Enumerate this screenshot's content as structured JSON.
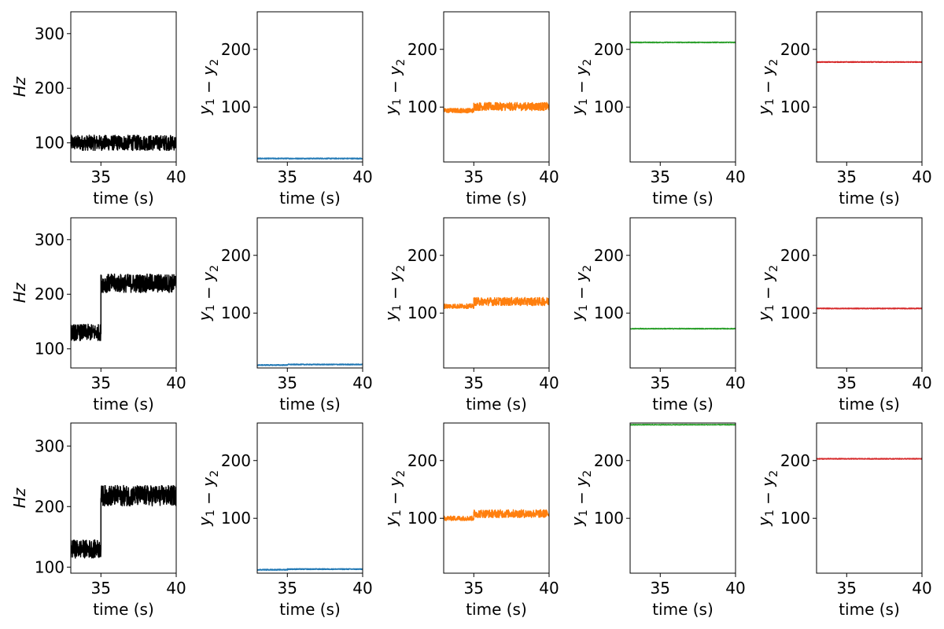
{
  "figure": {
    "rows": 3,
    "cols": 5
  },
  "chart_data": [
    {
      "type": "line",
      "row": 0,
      "col": 0,
      "xlabel": "time (s)",
      "ylabel": "Hz",
      "ylabel_italic": true,
      "xlim": [
        33,
        40
      ],
      "ylim": [
        65,
        340
      ],
      "xticks": [
        35,
        40
      ],
      "yticks": [
        100,
        200,
        300
      ],
      "color": "#000000",
      "segments": [
        {
          "t0": 33,
          "t1": 40,
          "level": 100,
          "amplitude": 14
        }
      ]
    },
    {
      "type": "line",
      "row": 0,
      "col": 1,
      "xlabel": "time (s)",
      "ylabel": "y1-y2",
      "xlim": [
        33,
        40
      ],
      "ylim": [
        5,
        265
      ],
      "xticks": [
        35,
        40
      ],
      "yticks": [
        100,
        200
      ],
      "color": "#1f77b4",
      "segments": [
        {
          "t0": 33,
          "t1": 40,
          "level": 11,
          "amplitude": 0.8
        }
      ]
    },
    {
      "type": "line",
      "row": 0,
      "col": 2,
      "xlabel": "time (s)",
      "ylabel": "y1-y2",
      "xlim": [
        33,
        40
      ],
      "ylim": [
        5,
        265
      ],
      "xticks": [
        35,
        40
      ],
      "yticks": [
        100,
        200
      ],
      "color": "#ff7f0e",
      "segments": [
        {
          "t0": 33,
          "t1": 35,
          "level": 94,
          "amplitude": 4
        },
        {
          "t0": 35,
          "t1": 40,
          "level": 101,
          "amplitude": 7
        }
      ]
    },
    {
      "type": "line",
      "row": 0,
      "col": 3,
      "xlabel": "time (s)",
      "ylabel": "y1-y2",
      "xlim": [
        33,
        40
      ],
      "ylim": [
        5,
        265
      ],
      "xticks": [
        35,
        40
      ],
      "yticks": [
        100,
        200
      ],
      "color": "#2ca02c",
      "segments": [
        {
          "t0": 33,
          "t1": 40,
          "level": 212,
          "amplitude": 0.7
        }
      ]
    },
    {
      "type": "line",
      "row": 0,
      "col": 4,
      "xlabel": "time (s)",
      "ylabel": "y1-y2",
      "xlim": [
        33,
        40
      ],
      "ylim": [
        5,
        265
      ],
      "xticks": [
        35,
        40
      ],
      "yticks": [
        100,
        200
      ],
      "color": "#d62728",
      "segments": [
        {
          "t0": 33,
          "t1": 40,
          "level": 178,
          "amplitude": 0.7
        }
      ]
    },
    {
      "type": "line",
      "row": 1,
      "col": 0,
      "xlabel": "time (s)",
      "ylabel": "Hz",
      "ylabel_italic": true,
      "xlim": [
        33,
        40
      ],
      "ylim": [
        65,
        340
      ],
      "xticks": [
        35,
        40
      ],
      "yticks": [
        100,
        200,
        300
      ],
      "color": "#000000",
      "segments": [
        {
          "t0": 33,
          "t1": 35,
          "level": 130,
          "amplitude": 15
        },
        {
          "t0": 35,
          "t1": 40,
          "level": 220,
          "amplitude": 17
        }
      ]
    },
    {
      "type": "line",
      "row": 1,
      "col": 1,
      "xlabel": "time (s)",
      "ylabel": "y1-y2",
      "xlim": [
        33,
        40
      ],
      "ylim": [
        5,
        265
      ],
      "xticks": [
        35,
        40
      ],
      "yticks": [
        100,
        200
      ],
      "color": "#1f77b4",
      "segments": [
        {
          "t0": 33,
          "t1": 35,
          "level": 10,
          "amplitude": 0.8
        },
        {
          "t0": 35,
          "t1": 40,
          "level": 11,
          "amplitude": 0.8
        }
      ]
    },
    {
      "type": "line",
      "row": 1,
      "col": 2,
      "xlabel": "time (s)",
      "ylabel": "y1-y2",
      "xlim": [
        33,
        40
      ],
      "ylim": [
        5,
        265
      ],
      "xticks": [
        35,
        40
      ],
      "yticks": [
        100,
        200
      ],
      "color": "#ff7f0e",
      "segments": [
        {
          "t0": 33,
          "t1": 35,
          "level": 112,
          "amplitude": 4
        },
        {
          "t0": 35,
          "t1": 40,
          "level": 120,
          "amplitude": 7
        }
      ]
    },
    {
      "type": "line",
      "row": 1,
      "col": 3,
      "xlabel": "time (s)",
      "ylabel": "y1-y2",
      "xlim": [
        33,
        40
      ],
      "ylim": [
        5,
        265
      ],
      "xticks": [
        35,
        40
      ],
      "yticks": [
        100,
        200
      ],
      "color": "#2ca02c",
      "segments": [
        {
          "t0": 33,
          "t1": 40,
          "level": 73,
          "amplitude": 0.7
        }
      ]
    },
    {
      "type": "line",
      "row": 1,
      "col": 4,
      "xlabel": "time (s)",
      "ylabel": "y1-y2",
      "xlim": [
        33,
        40
      ],
      "ylim": [
        5,
        265
      ],
      "xticks": [
        35,
        40
      ],
      "yticks": [
        100,
        200
      ],
      "color": "#d62728",
      "segments": [
        {
          "t0": 33,
          "t1": 40,
          "level": 108,
          "amplitude": 0.7
        }
      ]
    },
    {
      "type": "line",
      "row": 2,
      "col": 0,
      "xlabel": "time (s)",
      "ylabel": "Hz",
      "ylabel_italic": true,
      "xlim": [
        33,
        40
      ],
      "ylim": [
        90,
        338
      ],
      "xticks": [
        35,
        40
      ],
      "yticks": [
        100,
        200,
        300
      ],
      "color": "#000000",
      "segments": [
        {
          "t0": 33,
          "t1": 35,
          "level": 130,
          "amplitude": 15
        },
        {
          "t0": 35,
          "t1": 40,
          "level": 218,
          "amplitude": 17
        }
      ]
    },
    {
      "type": "line",
      "row": 2,
      "col": 1,
      "xlabel": "time (s)",
      "ylabel": "y1-y2",
      "xlim": [
        33,
        40
      ],
      "ylim": [
        5,
        265
      ],
      "xticks": [
        35,
        40
      ],
      "yticks": [
        100,
        200
      ],
      "color": "#1f77b4",
      "segments": [
        {
          "t0": 33,
          "t1": 35,
          "level": 11,
          "amplitude": 0.8
        },
        {
          "t0": 35,
          "t1": 40,
          "level": 12,
          "amplitude": 0.8
        }
      ]
    },
    {
      "type": "line",
      "row": 2,
      "col": 2,
      "xlabel": "time (s)",
      "ylabel": "y1-y2",
      "xlim": [
        33,
        40
      ],
      "ylim": [
        5,
        265
      ],
      "xticks": [
        35,
        40
      ],
      "yticks": [
        100,
        200
      ],
      "color": "#ff7f0e",
      "segments": [
        {
          "t0": 33,
          "t1": 35,
          "level": 100,
          "amplitude": 4
        },
        {
          "t0": 35,
          "t1": 40,
          "level": 108,
          "amplitude": 7
        }
      ]
    },
    {
      "type": "line",
      "row": 2,
      "col": 3,
      "xlabel": "time (s)",
      "ylabel": "y1-y2",
      "xlim": [
        33,
        40
      ],
      "ylim": [
        5,
        265
      ],
      "xticks": [
        35,
        40
      ],
      "yticks": [
        100,
        200
      ],
      "color": "#2ca02c",
      "segments": [
        {
          "t0": 33,
          "t1": 40,
          "level": 262,
          "amplitude": 0.7
        }
      ]
    },
    {
      "type": "line",
      "row": 2,
      "col": 4,
      "xlabel": "time (s)",
      "ylabel": "y1-y2",
      "xlim": [
        33,
        40
      ],
      "ylim": [
        5,
        265
      ],
      "xticks": [
        35,
        40
      ],
      "yticks": [
        100,
        200
      ],
      "color": "#d62728",
      "segments": [
        {
          "t0": 33,
          "t1": 40,
          "level": 203,
          "amplitude": 0.7
        }
      ]
    }
  ]
}
